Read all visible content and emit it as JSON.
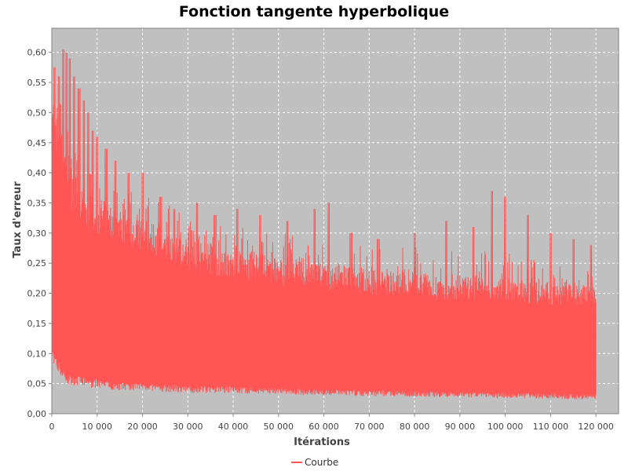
{
  "chart_data": {
    "type": "line",
    "title": "Fonction tangente hyperbolique",
    "xlabel": "Itérations",
    "ylabel": "Taux d'erreur",
    "xlim": [
      0,
      125000
    ],
    "ylim": [
      0,
      0.64
    ],
    "x_ticks": [
      0,
      10000,
      20000,
      30000,
      40000,
      50000,
      60000,
      70000,
      80000,
      90000,
      100000,
      110000,
      120000
    ],
    "x_tick_labels": [
      "0",
      "10 000",
      "20 000",
      "30 000",
      "40 000",
      "50 000",
      "60 000",
      "70 000",
      "80 000",
      "90 000",
      "100 000",
      "110 000",
      "120 000"
    ],
    "y_ticks": [
      0,
      0.05,
      0.1,
      0.15,
      0.2,
      0.25,
      0.3,
      0.35,
      0.4,
      0.45,
      0.5,
      0.55,
      0.6
    ],
    "y_tick_labels": [
      "0,00",
      "0,05",
      "0,10",
      "0,15",
      "0,20",
      "0,25",
      "0,30",
      "0,35",
      "0,40",
      "0,45",
      "0,50",
      "0,55",
      "0,60"
    ],
    "grid": true,
    "legend_position": "bottom-center",
    "plot_background": "#c0c0c0",
    "series": [
      {
        "name": "Courbe",
        "color": "#ff5555",
        "note_envelope": "oscillating error between lower and upper envelope",
        "x": [
          0,
          1000,
          2000,
          3000,
          4000,
          6000,
          8000,
          10000,
          15000,
          20000,
          25000,
          30000,
          35000,
          40000,
          45000,
          50000,
          55000,
          60000,
          65000,
          70000,
          75000,
          80000,
          85000,
          90000,
          95000,
          100000,
          105000,
          110000,
          115000,
          120000
        ],
        "upper": [
          0.58,
          0.52,
          0.5,
          0.45,
          0.42,
          0.38,
          0.37,
          0.36,
          0.34,
          0.33,
          0.31,
          0.29,
          0.28,
          0.27,
          0.27,
          0.26,
          0.26,
          0.25,
          0.25,
          0.24,
          0.24,
          0.24,
          0.23,
          0.23,
          0.23,
          0.23,
          0.22,
          0.22,
          0.22,
          0.21
        ],
        "lower": [
          0.1,
          0.08,
          0.07,
          0.06,
          0.055,
          0.055,
          0.05,
          0.05,
          0.045,
          0.045,
          0.042,
          0.04,
          0.04,
          0.04,
          0.038,
          0.038,
          0.036,
          0.036,
          0.035,
          0.034,
          0.034,
          0.033,
          0.032,
          0.032,
          0.031,
          0.03,
          0.03,
          0.029,
          0.028,
          0.028
        ],
        "peaks": [
          [
            500,
            0.575
          ],
          [
            1500,
            0.56
          ],
          [
            2600,
            0.605
          ],
          [
            3300,
            0.6
          ],
          [
            4000,
            0.59
          ],
          [
            5000,
            0.56
          ],
          [
            6000,
            0.54
          ],
          [
            7000,
            0.52
          ],
          [
            8000,
            0.5
          ],
          [
            9000,
            0.47
          ],
          [
            10000,
            0.46
          ],
          [
            12000,
            0.44
          ],
          [
            14000,
            0.42
          ],
          [
            17000,
            0.4
          ],
          [
            20000,
            0.4
          ],
          [
            24000,
            0.36
          ],
          [
            27000,
            0.34
          ],
          [
            32000,
            0.35
          ],
          [
            36000,
            0.33
          ],
          [
            41000,
            0.34
          ],
          [
            46000,
            0.33
          ],
          [
            52000,
            0.32
          ],
          [
            58000,
            0.34
          ],
          [
            61000,
            0.35
          ],
          [
            66000,
            0.3
          ],
          [
            72000,
            0.29
          ],
          [
            80000,
            0.3
          ],
          [
            87000,
            0.32
          ],
          [
            93000,
            0.31
          ],
          [
            97000,
            0.37
          ],
          [
            100000,
            0.36
          ],
          [
            105000,
            0.33
          ],
          [
            110000,
            0.3
          ],
          [
            115000,
            0.29
          ],
          [
            119000,
            0.28
          ]
        ]
      }
    ]
  }
}
